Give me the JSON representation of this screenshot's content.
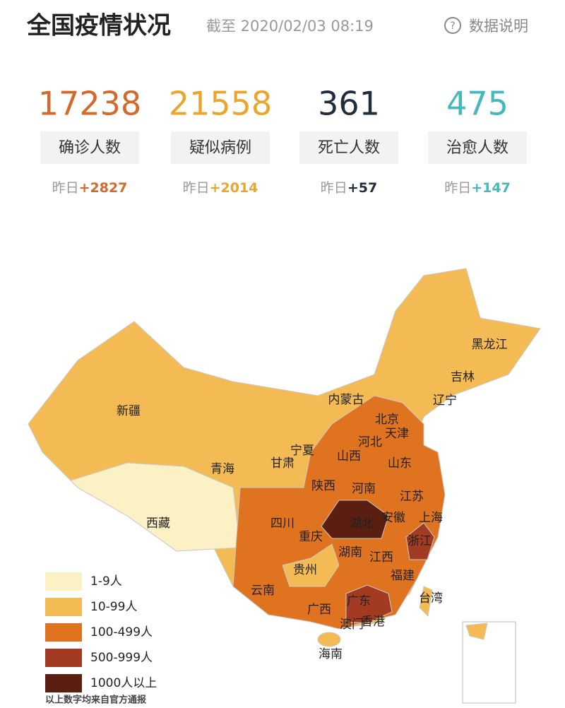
{
  "header": {
    "title": "全国疫情状况",
    "timestamp": "截至 2020/02/03 08:19",
    "help": "数据说明"
  },
  "stats": [
    {
      "value": 17238,
      "label": "确诊人数",
      "prefix": "昨日",
      "delta": "+2827",
      "color": "#d3692a"
    },
    {
      "value": 21558,
      "label": "疑似病例",
      "prefix": "昨日",
      "delta": "+2014",
      "color": "#eba52c"
    },
    {
      "value": 361,
      "label": "死亡人数",
      "prefix": "昨日",
      "delta": "+57",
      "color": "#1f2d3d"
    },
    {
      "value": 475,
      "label": "治愈人数",
      "prefix": "昨日",
      "delta": "+147",
      "color": "#45b9b9"
    }
  ],
  "map": {
    "provinces": [
      {
        "label": "黑龙江"
      },
      {
        "label": "吉林"
      },
      {
        "label": "辽宁"
      },
      {
        "label": "内蒙古"
      },
      {
        "label": "新疆"
      },
      {
        "label": "北京"
      },
      {
        "label": "天津"
      },
      {
        "label": "河北"
      },
      {
        "label": "山西"
      },
      {
        "label": "山东"
      },
      {
        "label": "宁夏"
      },
      {
        "label": "甘肃"
      },
      {
        "label": "青海"
      },
      {
        "label": "陕西"
      },
      {
        "label": "河南"
      },
      {
        "label": "江苏"
      },
      {
        "label": "西藏"
      },
      {
        "label": "四川"
      },
      {
        "label": "湖北"
      },
      {
        "label": "安徽"
      },
      {
        "label": "上海"
      },
      {
        "label": "重庆"
      },
      {
        "label": "浙江"
      },
      {
        "label": "湖南"
      },
      {
        "label": "江西"
      },
      {
        "label": "贵州"
      },
      {
        "label": "福建"
      },
      {
        "label": "云南"
      },
      {
        "label": "台湾"
      },
      {
        "label": "广东"
      },
      {
        "label": "广西"
      },
      {
        "label": "香港"
      },
      {
        "label": "澳门"
      },
      {
        "label": "海南"
      }
    ],
    "legend": [
      {
        "label": "1-9人",
        "color": "#fbf1c4"
      },
      {
        "label": "10-99人",
        "color": "#f4bb55"
      },
      {
        "label": "100-499人",
        "color": "#e0731f"
      },
      {
        "label": "500-999人",
        "color": "#a23b22"
      },
      {
        "label": "1000人以上",
        "color": "#5a1f10"
      }
    ],
    "footnote": "以上数字均来自官方通报"
  }
}
